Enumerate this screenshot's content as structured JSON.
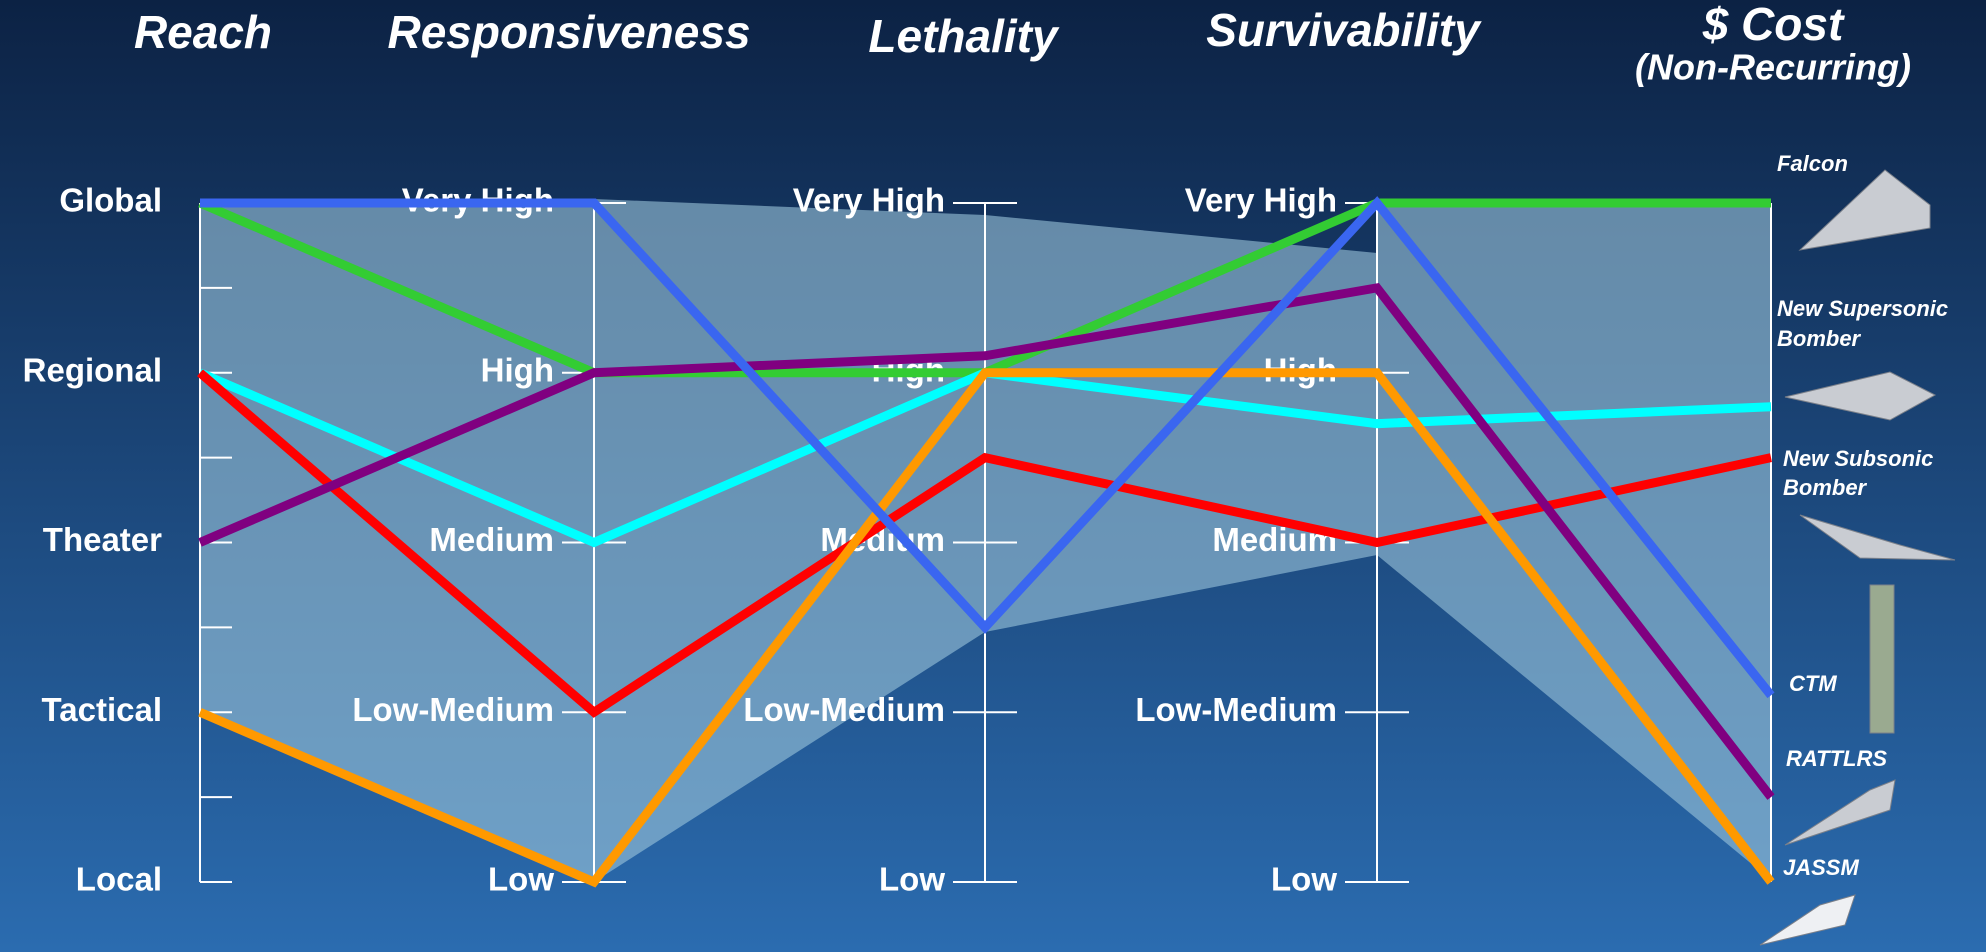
{
  "chart_data": {
    "type": "parallel",
    "axes": [
      {
        "title": "Reach",
        "lim": [
          0,
          8
        ],
        "ticks": [
          {
            "value": 8,
            "label": "Global"
          },
          {
            "value": 6,
            "label": "Regional"
          },
          {
            "value": 4,
            "label": "Theater"
          },
          {
            "value": 2,
            "label": "Tactical"
          },
          {
            "value": 0,
            "label": "Local"
          }
        ],
        "minor_ticks": [
          7,
          5,
          3,
          1
        ]
      },
      {
        "title": "Responsiveness",
        "lim": [
          0,
          4
        ],
        "ticks": [
          {
            "value": 4,
            "label": "Very High"
          },
          {
            "value": 3,
            "label": "High"
          },
          {
            "value": 2,
            "label": "Medium"
          },
          {
            "value": 1,
            "label": "Low-Medium"
          },
          {
            "value": 0,
            "label": "Low"
          }
        ]
      },
      {
        "title": "Lethality",
        "lim": [
          0,
          4
        ],
        "ticks": [
          {
            "value": 4,
            "label": "Very High"
          },
          {
            "value": 3,
            "label": "High"
          },
          {
            "value": 2,
            "label": "Medium"
          },
          {
            "value": 1,
            "label": "Low-Medium"
          },
          {
            "value": 0,
            "label": "Low"
          }
        ]
      },
      {
        "title": "Survivability",
        "lim": [
          0,
          4
        ],
        "ticks": [
          {
            "value": 4,
            "label": "Very High"
          },
          {
            "value": 3,
            "label": "High"
          },
          {
            "value": 2,
            "label": "Medium"
          },
          {
            "value": 1,
            "label": "Low-Medium"
          },
          {
            "value": 0,
            "label": "Low"
          }
        ]
      },
      {
        "title": "$ Cost",
        "subtitle": "(Non-Recurring)",
        "lim": [
          0,
          4
        ],
        "item_labels": [
          [
            "Falcon"
          ],
          [
            "New Supersonic",
            "Bomber"
          ],
          [
            "New Subsonic",
            "Bomber"
          ],
          [
            "CTM"
          ],
          [
            "RATTLRS"
          ],
          [
            "JASSM"
          ]
        ]
      }
    ],
    "series": [
      {
        "color": "#33cc33",
        "values": [
          8,
          3,
          3,
          4,
          4
        ]
      },
      {
        "color": "#00ffff",
        "values": [
          6,
          2,
          3,
          2.7,
          2.8
        ]
      },
      {
        "color": "#ff0000",
        "values": [
          6,
          1,
          2.5,
          2,
          2.5
        ]
      },
      {
        "color": "#800080",
        "values": [
          4,
          3,
          3.1,
          3.5,
          0.5
        ]
      },
      {
        "color": "#ff9900",
        "values": [
          2,
          0,
          3,
          3,
          0
        ]
      },
      {
        "color": "#3a66f0",
        "values": [
          8,
          4,
          1.5,
          4,
          1.1
        ]
      }
    ]
  }
}
